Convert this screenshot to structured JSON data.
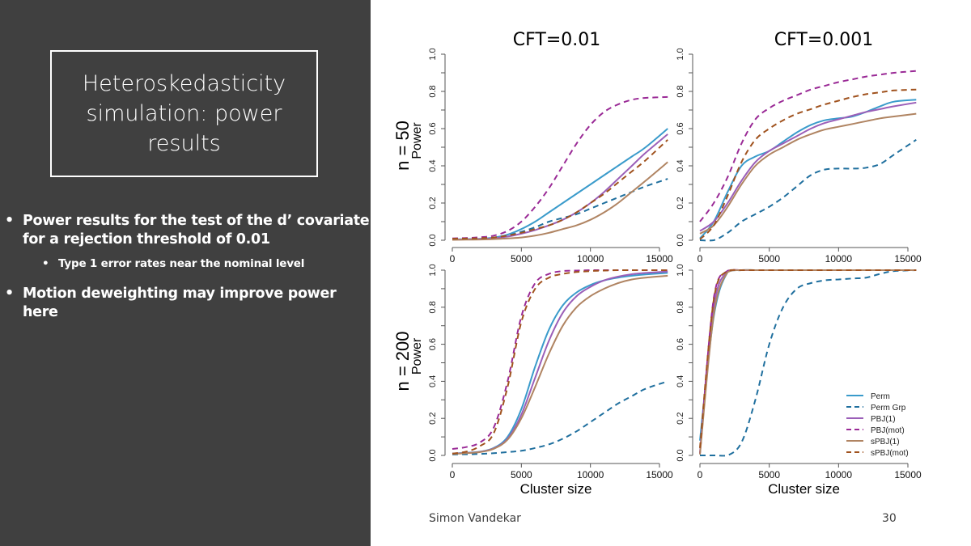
{
  "slide": {
    "title": "Heteroskedasticity simulation: power results",
    "bullets": [
      {
        "text": "Power results for the test of the d’ covariate for a rejection threshold of 0.01",
        "level": 1
      },
      {
        "text": "Type 1 error rates near the nominal level",
        "level": 2
      },
      {
        "text": "Motion deweighting may improve power here",
        "level": 1
      }
    ],
    "footer": "Simon Vandekar",
    "page_number": "30"
  },
  "chart_data": {
    "type": "line",
    "column_titles": [
      "CFT=0.01",
      "CFT=0.001"
    ],
    "row_labels": [
      "n = 50",
      "n = 200"
    ],
    "ylabel": "Power",
    "xlabel": "Cluster size",
    "xlim": [
      0,
      15600
    ],
    "ylim": [
      0,
      1
    ],
    "xticks": [
      "0",
      "5000",
      "10000",
      "15000"
    ],
    "yticks": [
      "0.0",
      "0.2",
      "0.4",
      "0.6",
      "0.8",
      "1.0"
    ],
    "legend": {
      "position": "bottom-right",
      "entries": [
        {
          "name": "Perm",
          "color": "#3a9bcb",
          "dash": false
        },
        {
          "name": "Perm Grp",
          "color": "#1f6f9e",
          "dash": true
        },
        {
          "name": "PBJ(1)",
          "color": "#9b5fb8",
          "dash": false
        },
        {
          "name": "PBJ(mot)",
          "color": "#9a2a96",
          "dash": true
        },
        {
          "name": "sPBJ(1)",
          "color": "#b08462",
          "dash": false
        },
        {
          "name": "sPBJ(mot)",
          "color": "#a0521e",
          "dash": true
        }
      ]
    },
    "x": [
      0,
      1000,
      2000,
      3000,
      4000,
      5000,
      6000,
      7000,
      8000,
      9000,
      10000,
      11000,
      12000,
      13000,
      14000,
      15600
    ],
    "panels": [
      {
        "name": "n50-cft001",
        "row": 0,
        "col": 0,
        "show_ylabel": true,
        "show_xlabel": false,
        "show_legend": false,
        "series": [
          {
            "name": "Perm",
            "color": "#3a9bcb",
            "dash": false,
            "values": [
              0.005,
              0.006,
              0.008,
              0.014,
              0.03,
              0.06,
              0.1,
              0.15,
              0.2,
              0.25,
              0.3,
              0.35,
              0.4,
              0.45,
              0.5,
              0.6
            ]
          },
          {
            "name": "Perm Grp",
            "color": "#1f6f9e",
            "dash": true,
            "values": [
              0.005,
              0.006,
              0.008,
              0.012,
              0.025,
              0.045,
              0.07,
              0.1,
              0.12,
              0.14,
              0.17,
              0.2,
              0.23,
              0.26,
              0.29,
              0.33
            ]
          },
          {
            "name": "PBJ(1)",
            "color": "#9b5fb8",
            "dash": false,
            "values": [
              0.004,
              0.005,
              0.007,
              0.011,
              0.02,
              0.035,
              0.055,
              0.08,
              0.11,
              0.15,
              0.2,
              0.26,
              0.33,
              0.4,
              0.47,
              0.57
            ]
          },
          {
            "name": "PBJ(mot)",
            "color": "#9a2a96",
            "dash": true,
            "values": [
              0.01,
              0.012,
              0.016,
              0.025,
              0.05,
              0.1,
              0.18,
              0.28,
              0.4,
              0.52,
              0.62,
              0.69,
              0.73,
              0.755,
              0.765,
              0.77
            ]
          },
          {
            "name": "sPBJ(1)",
            "color": "#b08462",
            "dash": false,
            "values": [
              0.002,
              0.003,
              0.004,
              0.006,
              0.01,
              0.015,
              0.025,
              0.04,
              0.06,
              0.08,
              0.11,
              0.15,
              0.2,
              0.26,
              0.32,
              0.42
            ]
          },
          {
            "name": "sPBJ(mot)",
            "color": "#a0521e",
            "dash": true,
            "values": [
              0.008,
              0.009,
              0.011,
              0.015,
              0.025,
              0.04,
              0.06,
              0.08,
              0.11,
              0.15,
              0.2,
              0.25,
              0.31,
              0.37,
              0.43,
              0.54
            ]
          }
        ]
      },
      {
        "name": "n50-cft0001",
        "row": 0,
        "col": 1,
        "show_ylabel": false,
        "show_xlabel": false,
        "show_legend": false,
        "series": [
          {
            "name": "Perm",
            "color": "#3a9bcb",
            "dash": false,
            "values": [
              0.01,
              0.1,
              0.26,
              0.4,
              0.45,
              0.48,
              0.53,
              0.58,
              0.62,
              0.645,
              0.655,
              0.665,
              0.69,
              0.72,
              0.745,
              0.755
            ]
          },
          {
            "name": "Perm Grp",
            "color": "#1f6f9e",
            "dash": true,
            "values": [
              0.0,
              0.0,
              0.04,
              0.1,
              0.14,
              0.18,
              0.23,
              0.29,
              0.35,
              0.38,
              0.385,
              0.385,
              0.39,
              0.41,
              0.46,
              0.54
            ]
          },
          {
            "name": "PBJ(1)",
            "color": "#9b5fb8",
            "dash": false,
            "values": [
              0.05,
              0.1,
              0.2,
              0.32,
              0.42,
              0.48,
              0.52,
              0.56,
              0.6,
              0.63,
              0.65,
              0.67,
              0.69,
              0.705,
              0.72,
              0.74
            ]
          },
          {
            "name": "PBJ(mot)",
            "color": "#9a2a96",
            "dash": true,
            "values": [
              0.1,
              0.2,
              0.34,
              0.52,
              0.65,
              0.71,
              0.75,
              0.78,
              0.81,
              0.83,
              0.85,
              0.865,
              0.88,
              0.89,
              0.9,
              0.91
            ]
          },
          {
            "name": "sPBJ(1)",
            "color": "#b08462",
            "dash": false,
            "values": [
              0.035,
              0.08,
              0.18,
              0.3,
              0.4,
              0.46,
              0.5,
              0.54,
              0.57,
              0.595,
              0.61,
              0.625,
              0.64,
              0.655,
              0.665,
              0.68
            ]
          },
          {
            "name": "sPBJ(mot)",
            "color": "#a0521e",
            "dash": true,
            "values": [
              0.005,
              0.08,
              0.24,
              0.42,
              0.54,
              0.6,
              0.645,
              0.68,
              0.705,
              0.73,
              0.75,
              0.77,
              0.785,
              0.795,
              0.805,
              0.81
            ]
          }
        ]
      },
      {
        "name": "n200-cft001",
        "row": 1,
        "col": 0,
        "show_ylabel": true,
        "show_xlabel": true,
        "show_legend": false,
        "series": [
          {
            "name": "Perm",
            "color": "#3a9bcb",
            "dash": false,
            "values": [
              0.01,
              0.014,
              0.02,
              0.04,
              0.1,
              0.25,
              0.48,
              0.68,
              0.81,
              0.88,
              0.92,
              0.945,
              0.96,
              0.97,
              0.977,
              0.985
            ]
          },
          {
            "name": "Perm Grp",
            "color": "#1f6f9e",
            "dash": true,
            "values": [
              0.005,
              0.006,
              0.008,
              0.012,
              0.018,
              0.025,
              0.04,
              0.06,
              0.09,
              0.13,
              0.18,
              0.23,
              0.28,
              0.32,
              0.36,
              0.4
            ]
          },
          {
            "name": "PBJ(1)",
            "color": "#9b5fb8",
            "dash": false,
            "values": [
              0.01,
              0.013,
              0.019,
              0.038,
              0.09,
              0.22,
              0.42,
              0.62,
              0.77,
              0.86,
              0.91,
              0.945,
              0.965,
              0.978,
              0.985,
              0.993
            ]
          },
          {
            "name": "PBJ(mot)",
            "color": "#9a2a96",
            "dash": true,
            "values": [
              0.035,
              0.045,
              0.07,
              0.15,
              0.4,
              0.75,
              0.93,
              0.98,
              0.995,
              0.998,
              1.0,
              1.0,
              1.0,
              1.0,
              1.0,
              1.0
            ]
          },
          {
            "name": "sPBJ(1)",
            "color": "#b08462",
            "dash": false,
            "values": [
              0.008,
              0.012,
              0.018,
              0.036,
              0.085,
              0.2,
              0.37,
              0.55,
              0.7,
              0.8,
              0.86,
              0.9,
              0.93,
              0.95,
              0.96,
              0.97
            ]
          },
          {
            "name": "sPBJ(mot)",
            "color": "#a0521e",
            "dash": true,
            "values": [
              0.01,
              0.02,
              0.05,
              0.12,
              0.37,
              0.72,
              0.9,
              0.96,
              0.98,
              0.99,
              0.995,
              0.998,
              1.0,
              1.0,
              1.0,
              1.0
            ]
          }
        ]
      },
      {
        "name": "n200-cft0001",
        "row": 1,
        "col": 1,
        "show_ylabel": false,
        "show_xlabel": true,
        "show_legend": true,
        "series": [
          {
            "name": "Perm",
            "color": "#3a9bcb",
            "dash": false,
            "values": [
              0.08,
              0.75,
              0.99,
              1.0,
              1.0,
              1.0,
              1.0,
              1.0,
              1.0,
              1.0,
              1.0,
              1.0,
              1.0,
              1.0,
              1.0,
              1.0
            ]
          },
          {
            "name": "Perm Grp",
            "color": "#1f6f9e",
            "dash": true,
            "values": [
              0.0,
              0.0,
              0.0,
              0.07,
              0.3,
              0.6,
              0.8,
              0.9,
              0.93,
              0.945,
              0.95,
              0.955,
              0.96,
              0.98,
              0.995,
              1.0
            ]
          },
          {
            "name": "PBJ(1)",
            "color": "#9b5fb8",
            "dash": false,
            "values": [
              0.01,
              0.8,
              0.995,
              1.0,
              1.0,
              1.0,
              1.0,
              1.0,
              1.0,
              1.0,
              1.0,
              1.0,
              1.0,
              1.0,
              1.0,
              1.0
            ]
          },
          {
            "name": "PBJ(mot)",
            "color": "#9a2a96",
            "dash": true,
            "values": [
              0.01,
              0.85,
              0.997,
              1.0,
              1.0,
              1.0,
              1.0,
              1.0,
              1.0,
              1.0,
              1.0,
              1.0,
              1.0,
              1.0,
              1.0,
              1.0
            ]
          },
          {
            "name": "sPBJ(1)",
            "color": "#b08462",
            "dash": false,
            "values": [
              0.005,
              0.76,
              0.99,
              1.0,
              1.0,
              1.0,
              1.0,
              1.0,
              1.0,
              1.0,
              1.0,
              1.0,
              1.0,
              1.0,
              1.0,
              1.0
            ]
          },
          {
            "name": "sPBJ(mot)",
            "color": "#a0521e",
            "dash": true,
            "values": [
              0.04,
              0.84,
              0.997,
              1.0,
              1.0,
              1.0,
              1.0,
              1.0,
              1.0,
              1.0,
              1.0,
              1.0,
              1.0,
              1.0,
              1.0,
              1.0
            ]
          }
        ]
      }
    ]
  }
}
